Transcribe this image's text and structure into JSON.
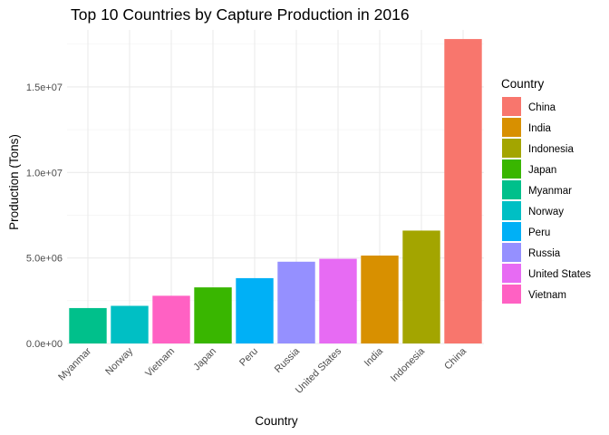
{
  "chart_data": {
    "type": "bar",
    "title": "Top 10 Countries by Capture Production in 2016",
    "xlabel": "Country",
    "ylabel": "Production (Tons)",
    "categories": [
      "Myanmar",
      "Norway",
      "Vietnam",
      "Japan",
      "Peru",
      "Russia",
      "United States",
      "India",
      "Indonesia",
      "China"
    ],
    "values": [
      2070000,
      2200000,
      2790000,
      3280000,
      3820000,
      4780000,
      4950000,
      5140000,
      6600000,
      17800000
    ],
    "bar_colors": [
      "#00C08B",
      "#00BFC4",
      "#FF61C3",
      "#39B600",
      "#00B0F6",
      "#9590FF",
      "#E76BF3",
      "#D89000",
      "#A3A500",
      "#F8766D"
    ],
    "ylim": [
      0,
      17800000
    ],
    "y_ticks": [
      0,
      5000000,
      10000000,
      15000000
    ],
    "y_tick_labels": [
      "0.0e+00",
      "5.0e+06",
      "1.0e+07",
      "1.5e+07"
    ],
    "grid": true,
    "legend": {
      "title": "Country",
      "position": "right",
      "items": [
        {
          "label": "China",
          "color": "#F8766D"
        },
        {
          "label": "India",
          "color": "#D89000"
        },
        {
          "label": "Indonesia",
          "color": "#A3A500"
        },
        {
          "label": "Japan",
          "color": "#39B600"
        },
        {
          "label": "Myanmar",
          "color": "#00C08B"
        },
        {
          "label": "Norway",
          "color": "#00BFC4"
        },
        {
          "label": "Peru",
          "color": "#00B0F6"
        },
        {
          "label": "Russia",
          "color": "#9590FF"
        },
        {
          "label": "United States",
          "color": "#E76BF3"
        },
        {
          "label": "Vietnam",
          "color": "#FF61C3"
        }
      ]
    }
  }
}
